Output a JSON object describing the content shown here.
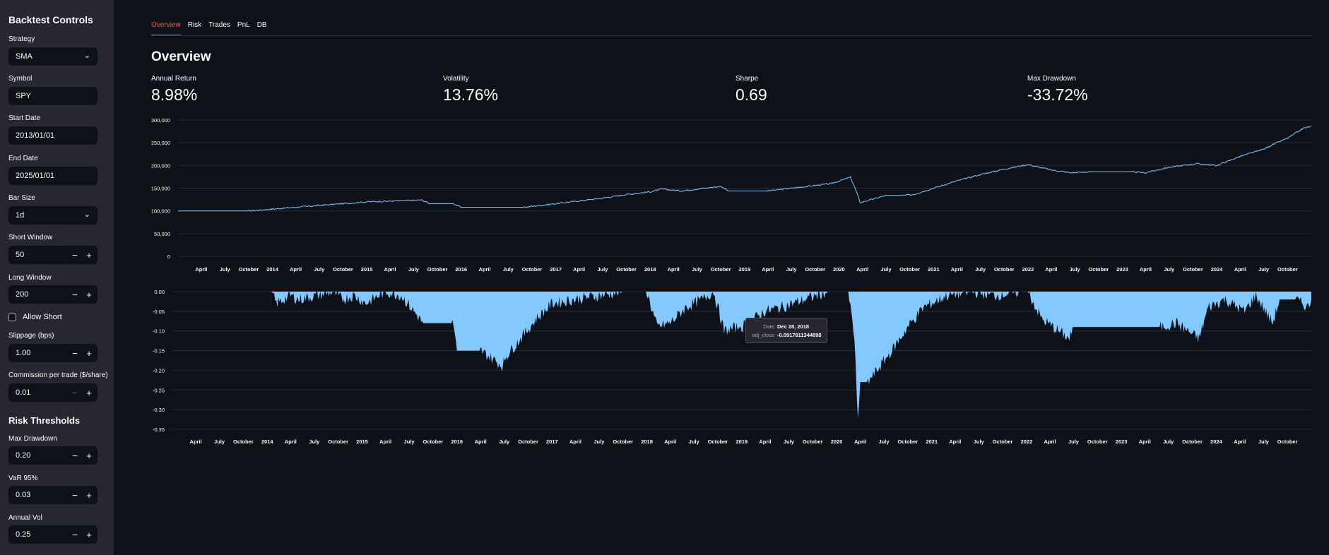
{
  "sidebar": {
    "title": "Backtest Controls",
    "strategy": {
      "label": "Strategy",
      "value": "SMA"
    },
    "symbol": {
      "label": "Symbol",
      "value": "SPY"
    },
    "start_date": {
      "label": "Start Date",
      "value": "2013/01/01"
    },
    "end_date": {
      "label": "End Date",
      "value": "2025/01/01"
    },
    "bar_size": {
      "label": "Bar Size",
      "value": "1d"
    },
    "short_window": {
      "label": "Short Window",
      "value": "50"
    },
    "long_window": {
      "label": "Long Window",
      "value": "200"
    },
    "allow_short": {
      "label": "Allow Short",
      "checked": false
    },
    "slippage": {
      "label": "Slippage (bps)",
      "value": "1.00"
    },
    "commission": {
      "label": "Commission per trade ($/share)",
      "value": "0.01"
    },
    "risk_title": "Risk Thresholds",
    "max_drawdown": {
      "label": "Max Drawdown",
      "value": "0.20"
    },
    "var95": {
      "label": "VaR 95%",
      "value": "0.03"
    },
    "annual_vol": {
      "label": "Annual Vol",
      "value": "0.25"
    },
    "minus": "−",
    "plus": "+",
    "chevron": "⌄"
  },
  "tabs": [
    {
      "label": "Overview",
      "active": true
    },
    {
      "label": "Risk",
      "active": false
    },
    {
      "label": "Trades",
      "active": false
    },
    {
      "label": "PnL",
      "active": false
    },
    {
      "label": "DB",
      "active": false
    }
  ],
  "page_title": "Overview",
  "metrics": [
    {
      "label": "Annual Return",
      "value": "8.98%"
    },
    {
      "label": "Volatility",
      "value": "13.76%"
    },
    {
      "label": "Sharpe",
      "value": "0.69"
    },
    {
      "label": "Max Drawdown",
      "value": "-33.72%"
    }
  ],
  "tooltip": {
    "date_key": "Date",
    "date_value": "Dec 28, 2018",
    "series_key": "adj_close",
    "series_value": "-0.0917811344898"
  },
  "colors": {
    "accent": "#ff4b4b",
    "series": "#83c9ff",
    "bg": "#0e1117",
    "sidebar": "#262730"
  },
  "chart_data": [
    {
      "type": "line",
      "x_tick_labels": [
        "April",
        "July",
        "October",
        "2014",
        "April",
        "July",
        "October",
        "2015",
        "April",
        "July",
        "October",
        "2016",
        "April",
        "July",
        "October",
        "2017",
        "April",
        "July",
        "October",
        "2018",
        "April",
        "July",
        "October",
        "2019",
        "April",
        "July",
        "October",
        "2020",
        "April",
        "July",
        "October",
        "2021",
        "April",
        "July",
        "October",
        "2022",
        "April",
        "July",
        "October",
        "2023",
        "April",
        "July",
        "October",
        "2024",
        "April",
        "July",
        "October"
      ],
      "y_tick_labels": [
        "300,000",
        "250,000",
        "200,000",
        "150,000",
        "100,000",
        "50,000",
        "0"
      ],
      "ylim": [
        0,
        300000
      ],
      "xlim": [
        "2013-01-01",
        "2025-01-01"
      ],
      "grid": true,
      "series": [
        {
          "x": [
            "2013-01-01",
            "2013-10-01",
            "2014-01-01",
            "2014-04-01",
            "2014-07-01",
            "2014-10-01",
            "2015-01-01",
            "2015-05-01",
            "2015-08-01",
            "2015-09-01",
            "2015-12-01",
            "2016-01-01",
            "2016-03-01",
            "2016-06-01",
            "2016-09-01",
            "2017-01-01",
            "2017-04-01",
            "2017-07-01",
            "2017-10-01",
            "2018-01-01",
            "2018-02-15",
            "2018-05-01",
            "2018-08-01",
            "2018-10-01",
            "2018-11-01",
            "2019-01-01",
            "2019-04-01",
            "2019-06-01",
            "2019-09-01",
            "2019-12-01",
            "2020-02-15",
            "2020-03-10",
            "2020-03-23",
            "2020-07-01",
            "2020-09-01",
            "2020-10-15",
            "2021-01-01",
            "2021-04-01",
            "2021-07-01",
            "2021-10-01",
            "2022-01-01",
            "2022-04-01",
            "2022-06-15",
            "2022-09-01",
            "2023-01-01",
            "2023-02-01",
            "2023-04-01",
            "2023-07-01",
            "2023-10-15",
            "2024-01-01",
            "2024-04-01",
            "2024-07-01",
            "2024-08-05",
            "2024-10-01",
            "2024-12-01",
            "2025-01-01"
          ],
          "y": [
            100000,
            100000,
            104000,
            108000,
            112000,
            116000,
            120000,
            122000,
            124000,
            116000,
            116000,
            108000,
            108000,
            108000,
            108000,
            116000,
            122000,
            128000,
            136000,
            142000,
            148000,
            144000,
            150000,
            154000,
            144000,
            144000,
            144000,
            148000,
            154000,
            160000,
            174000,
            140000,
            118000,
            134000,
            134000,
            136000,
            150000,
            166000,
            180000,
            192000,
            202000,
            190000,
            184000,
            186000,
            186000,
            186000,
            184000,
            196000,
            204000,
            200000,
            220000,
            236000,
            246000,
            260000,
            282000,
            286000
          ]
        }
      ]
    },
    {
      "type": "area",
      "x_tick_labels": [
        "April",
        "July",
        "October",
        "2014",
        "April",
        "July",
        "October",
        "2015",
        "April",
        "July",
        "October",
        "2016",
        "April",
        "July",
        "October",
        "2017",
        "April",
        "July",
        "October",
        "2018",
        "April",
        "July",
        "October",
        "2019",
        "April",
        "July",
        "October",
        "2020",
        "April",
        "July",
        "October",
        "2021",
        "April",
        "July",
        "October",
        "2022",
        "April",
        "July",
        "October",
        "2023",
        "April",
        "July",
        "October",
        "2024",
        "April",
        "July",
        "October"
      ],
      "y_tick_labels": [
        "0.00",
        "-0.05",
        "-0.10",
        "-0.15",
        "-0.20",
        "-0.25",
        "-0.30",
        "-0.35"
      ],
      "ylim": [
        -0.35,
        0
      ],
      "xlim": [
        "2013-01-01",
        "2025-01-01"
      ],
      "grid": true,
      "series": [
        {
          "x": [
            "2013-01-01",
            "2013-10-01",
            "2014-01-15",
            "2014-02-05",
            "2014-04-01",
            "2014-05-01",
            "2014-09-15",
            "2014-10-15",
            "2014-12-01",
            "2015-01-15",
            "2015-04-01",
            "2015-06-01",
            "2015-08-24",
            "2015-09-01",
            "2015-12-15",
            "2016-01-01",
            "2016-02-11",
            "2016-04-01",
            "2016-06-27",
            "2016-07-01",
            "2016-09-01",
            "2016-11-01",
            "2017-01-01",
            "2017-04-01",
            "2017-07-01",
            "2017-10-01",
            "2018-01-01",
            "2018-02-09",
            "2018-04-01",
            "2018-06-01",
            "2018-08-01",
            "2018-09-15",
            "2018-10-25",
            "2018-12-24",
            "2019-01-01",
            "2019-04-01",
            "2019-06-01",
            "2019-09-01",
            "2019-12-01",
            "2020-02-15",
            "2020-03-10",
            "2020-03-23",
            "2020-04-01",
            "2020-05-01",
            "2020-08-01",
            "2020-10-01",
            "2020-12-01",
            "2021-03-01",
            "2021-06-01",
            "2021-09-01",
            "2021-12-01",
            "2022-01-05",
            "2022-03-01",
            "2022-06-15",
            "2022-07-01",
            "2022-09-01",
            "2022-12-01",
            "2023-01-01",
            "2023-03-01",
            "2023-06-01",
            "2023-08-01",
            "2023-10-27",
            "2023-12-01",
            "2024-02-01",
            "2024-04-19",
            "2024-06-01",
            "2024-08-05",
            "2024-09-01",
            "2024-11-01",
            "2024-12-20",
            "2025-01-01"
          ],
          "y": [
            0,
            0,
            0,
            -0.03,
            -0.01,
            -0.02,
            0,
            -0.02,
            -0.01,
            -0.03,
            0,
            -0.01,
            -0.08,
            -0.08,
            -0.08,
            -0.15,
            -0.15,
            -0.15,
            -0.19,
            -0.17,
            -0.12,
            -0.07,
            -0.03,
            -0.02,
            -0.01,
            0,
            0,
            -0.09,
            -0.08,
            -0.04,
            -0.02,
            0,
            -0.1,
            -0.09,
            -0.09,
            -0.05,
            -0.04,
            -0.02,
            0,
            0,
            -0.12,
            -0.337,
            -0.23,
            -0.23,
            -0.15,
            -0.09,
            -0.04,
            -0.01,
            0,
            -0.01,
            0,
            0,
            -0.07,
            -0.12,
            -0.09,
            -0.09,
            -0.09,
            -0.09,
            -0.09,
            -0.09,
            -0.08,
            -0.12,
            -0.04,
            -0.02,
            -0.05,
            -0.01,
            -0.08,
            -0.02,
            -0.02,
            -0.04,
            -0.02
          ]
        }
      ]
    }
  ]
}
